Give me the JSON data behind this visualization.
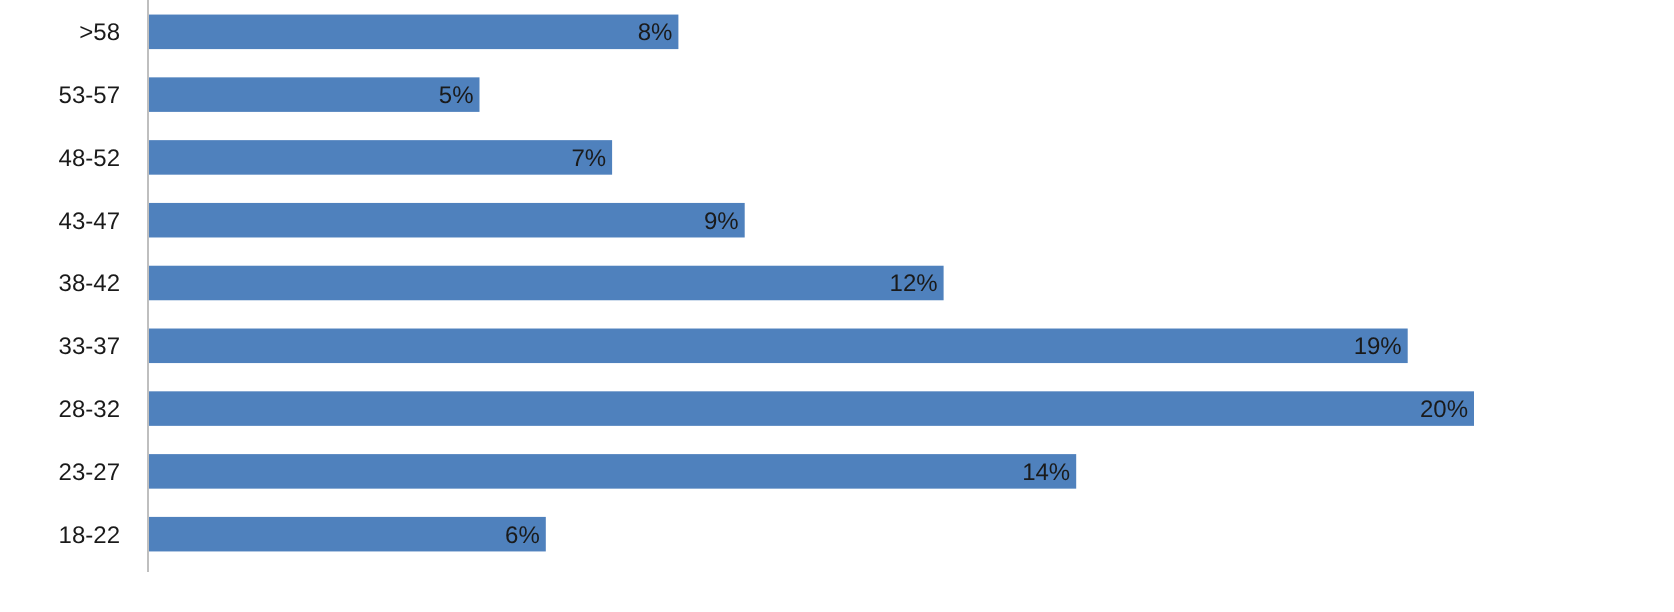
{
  "chart_data": {
    "type": "bar",
    "orientation": "horizontal",
    "categories": [
      ">58",
      "53-57",
      "48-52",
      "43-47",
      "38-42",
      "33-37",
      "28-32",
      "23-27",
      "18-22"
    ],
    "values": [
      8,
      5,
      7,
      9,
      12,
      19,
      20,
      14,
      6
    ],
    "value_labels": [
      "8%",
      "5%",
      "7%",
      "9%",
      "12%",
      "19%",
      "20%",
      "14%",
      "6%"
    ],
    "color": "#4f81bd"
  }
}
